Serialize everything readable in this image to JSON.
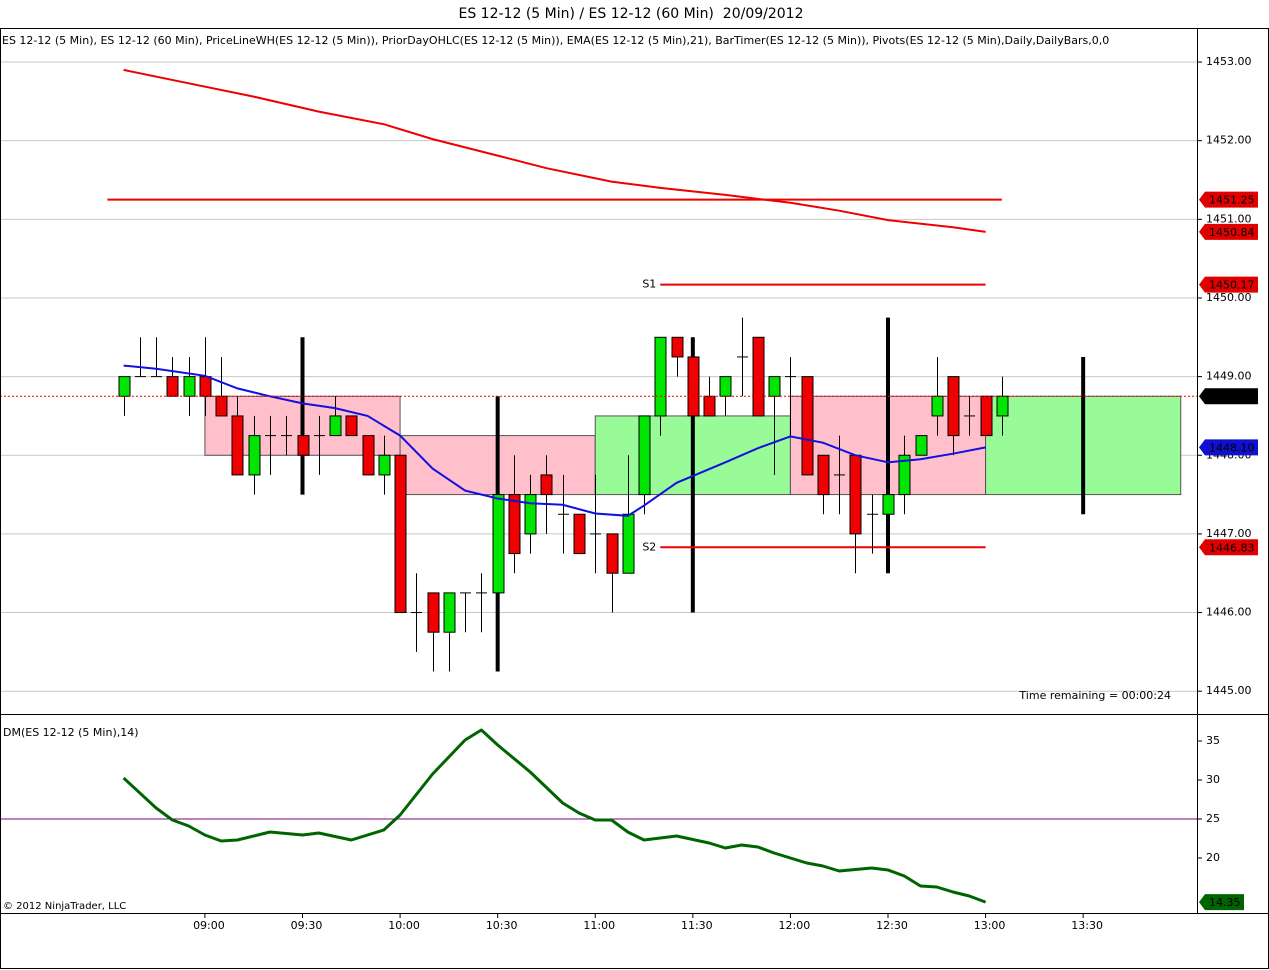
{
  "chart_data": [
    {
      "type": "candlestick",
      "title": "ES 12-12 (5 Min) / ES 12-12 (60 Min)  20/09/2012",
      "subtitle": "ES 12-12 (5 Min), ES 12-12 (60 Min), PriceLineWH(ES 12-12 (5 Min)), PriorDayOHLC(ES 12-12 (5 Min)), EMA(ES 12-12 (5 Min),21), BarTimer(ES 12-12 (5 Min)), Pivots(ES 12-12 (5 Min),Daily,DailyBars,0,0",
      "xlim": [
        "07:57",
        "14:05"
      ],
      "ylim": [
        1444.71,
        1453.42
      ],
      "yticks": [
        {
          "value": 1445,
          "label": "1445.00"
        },
        {
          "value": 1446,
          "label": "1446.00"
        },
        {
          "value": 1447,
          "label": "1447.00"
        },
        {
          "value": 1448,
          "label": "1448.00"
        },
        {
          "value": 1449,
          "label": "1449.00"
        },
        {
          "value": 1450,
          "label": "1450.00"
        },
        {
          "value": 1451,
          "label": "1451.00"
        },
        {
          "value": 1452,
          "label": "1452.00"
        },
        {
          "value": 1453,
          "label": "1453.00"
        }
      ],
      "grid": true,
      "candles": {
        "up_color": "#00e600",
        "down_color": "#f00000",
        "x": [
          "08:35",
          "08:40",
          "08:45",
          "08:50",
          "08:55",
          "09:00",
          "09:05",
          "09:10",
          "09:15",
          "09:20",
          "09:25",
          "09:30",
          "09:35",
          "09:40",
          "09:45",
          "09:50",
          "09:55",
          "10:00",
          "10:05",
          "10:10",
          "10:15",
          "10:20",
          "10:25",
          "10:30",
          "10:35",
          "10:40",
          "10:45",
          "10:50",
          "10:55",
          "11:00",
          "11:05",
          "11:10",
          "11:15",
          "11:20",
          "11:25",
          "11:30",
          "11:35",
          "11:40",
          "11:45",
          "11:50",
          "11:55",
          "12:00",
          "12:05",
          "12:10",
          "12:15",
          "12:20",
          "12:25",
          "12:30",
          "12:35",
          "12:40",
          "12:45",
          "12:50",
          "12:55",
          "13:00",
          "13:05"
        ],
        "open": [
          1448.75,
          1449,
          1449,
          1449,
          1448.75,
          1449,
          1448.75,
          1448.5,
          1447.75,
          1448.25,
          1448.25,
          1448.25,
          1448.25,
          1448.25,
          1448.5,
          1448.25,
          1447.75,
          1448,
          1446,
          1446.25,
          1445.75,
          1446.25,
          1446.25,
          1446.25,
          1447.5,
          1447,
          1447.75,
          1447.25,
          1447.25,
          1447,
          1447,
          1446.5,
          1447.5,
          1448.5,
          1449.5,
          1449.25,
          1448.75,
          1448.75,
          1449.25,
          1449.5,
          1448.75,
          1449,
          1449,
          1448,
          1447.75,
          1448,
          1447.25,
          1447.25,
          1447.5,
          1448,
          1448.5,
          1449,
          1448.5,
          1448.75,
          1448.5
        ],
        "high": [
          1449,
          1449.5,
          1449.5,
          1449.25,
          1449.25,
          1449.5,
          1449.25,
          1448.75,
          1448.5,
          1448.5,
          1448.5,
          1448.5,
          1448.5,
          1448.75,
          1448.5,
          1448.25,
          1448.25,
          1448,
          1446.5,
          1446.25,
          1446.25,
          1446.25,
          1446.5,
          1448,
          1448,
          1447.75,
          1448,
          1447.75,
          1447.25,
          1447.75,
          1447,
          1448,
          1448.5,
          1449.5,
          1449.5,
          1449.5,
          1449,
          1449,
          1449.75,
          1449.5,
          1449,
          1449.25,
          1449,
          1448,
          1448.25,
          1448,
          1447.5,
          1447.75,
          1448.25,
          1448.25,
          1449.25,
          1449,
          1448.75,
          1448.75,
          1449
        ],
        "low": [
          1448.5,
          1449,
          1449,
          1448.75,
          1448.5,
          1448.5,
          1448.5,
          1447.75,
          1447.5,
          1447.75,
          1448,
          1447.75,
          1447.75,
          1448.25,
          1448.25,
          1447.75,
          1447.5,
          1446,
          1445.5,
          1445.25,
          1445.25,
          1445.75,
          1445.75,
          1445.75,
          1446.5,
          1446.75,
          1447,
          1446.75,
          1446.75,
          1446.5,
          1446,
          1446.5,
          1447.25,
          1448.25,
          1449,
          1448.5,
          1448.5,
          1448.5,
          1448.75,
          1448.5,
          1447.75,
          1448.25,
          1447.75,
          1447.25,
          1447.25,
          1446.5,
          1446.75,
          1447,
          1447.25,
          1448,
          1448.25,
          1448,
          1448.25,
          1448.25,
          1448.25
        ],
        "close": [
          1449,
          1449,
          1449,
          1448.75,
          1449,
          1448.75,
          1448.5,
          1447.75,
          1448.25,
          1448.25,
          1448.25,
          1448,
          1448.25,
          1448.5,
          1448.25,
          1447.75,
          1448,
          1446,
          1446,
          1445.75,
          1446.25,
          1446.25,
          1446.25,
          1447.5,
          1446.75,
          1447.5,
          1447.5,
          1447.25,
          1446.75,
          1447,
          1446.5,
          1447.25,
          1448.5,
          1449.5,
          1449.25,
          1448.5,
          1448.5,
          1449,
          1449.25,
          1448.5,
          1449,
          1449,
          1447.75,
          1447.5,
          1447.75,
          1447,
          1447.25,
          1447.5,
          1448,
          1448.25,
          1448.75,
          1448.25,
          1448.5,
          1448.25,
          1448.75
        ]
      },
      "hourly": {
        "up_color": "#98fb98",
        "down_color": "#ffc0cb",
        "wick_color": "#000000",
        "x": [
          "09:30",
          "10:30",
          "11:30",
          "12:30",
          "13:30"
        ],
        "open": [
          1448.75,
          1448.25,
          1447.5,
          1448.75,
          1447.5
        ],
        "high": [
          1449.5,
          1448.75,
          1449.5,
          1449.75,
          1449.25
        ],
        "low": [
          1447.5,
          1445.25,
          1446,
          1446.5,
          1447.25
        ],
        "close": [
          1448,
          1447.5,
          1448.5,
          1447.5,
          1448.75
        ]
      },
      "series": [
        {
          "color": "#ee0000",
          "x": [
            "08:35",
            "08:55",
            "09:15",
            "09:35",
            "09:55",
            "10:10",
            "10:30",
            "10:45",
            "11:05",
            "11:20",
            "11:40",
            "12:00",
            "12:15",
            "12:30",
            "12:50",
            "13:00"
          ],
          "values": [
            1452.9,
            1452.73,
            1452.56,
            1452.37,
            1452.21,
            1452.02,
            1451.81,
            1451.65,
            1451.48,
            1451.4,
            1451.31,
            1451.21,
            1451.11,
            1450.99,
            1450.9,
            1450.84
          ]
        },
        {
          "color": "#1010e0",
          "x": [
            "08:35",
            "08:45",
            "09:00",
            "09:10",
            "09:20",
            "09:30",
            "09:40",
            "09:50",
            "10:00",
            "10:10",
            "10:20",
            "10:30",
            "10:40",
            "10:50",
            "11:00",
            "11:10",
            "11:15",
            "11:25",
            "11:40",
            "11:50",
            "12:00",
            "12:10",
            "12:20",
            "12:30",
            "12:40",
            "12:50",
            "13:00"
          ],
          "values": [
            1449.14,
            1449.1,
            1449.01,
            1448.85,
            1448.75,
            1448.66,
            1448.6,
            1448.5,
            1448.25,
            1447.83,
            1447.55,
            1447.45,
            1447.39,
            1447.37,
            1447.26,
            1447.23,
            1447.36,
            1447.65,
            1447.91,
            1448.09,
            1448.24,
            1448.16,
            1448,
            1447.91,
            1447.95,
            1448.02,
            1448.1
          ]
        }
      ],
      "levels": [
        {
          "value": 1451.25,
          "x": [
            "08:30",
            "13:05"
          ]
        },
        {
          "label": "S1",
          "value": 1450.17,
          "x": [
            "11:20",
            "13:00"
          ]
        },
        {
          "label": "S2",
          "value": 1446.83,
          "x": [
            "11:20",
            "13:00"
          ]
        }
      ],
      "level_color": "#ee0000",
      "price_line": {
        "value": 1448.75,
        "color": "#ee0000"
      },
      "tags": {
        "values": [
          1451.25,
          1450.84,
          1450.17,
          1448.75,
          1448.1,
          1446.83
        ],
        "value_labels": [
          "1451.25",
          "1450.84",
          "1450.17",
          "1448.75",
          "1448.10",
          "1446.83"
        ],
        "colors": [
          "#e00000",
          "#e00000",
          "#e00000",
          "#000000",
          "#1010d0",
          "#e00000"
        ]
      },
      "annotations": [
        "Time remaining = 00:00:24",
        "© 2012 NinjaTrader, LLC"
      ]
    },
    {
      "type": "line",
      "title": "DM(ES 12-12 (5 Min),14)",
      "color": "#006400",
      "xlim": [
        "07:57",
        "14:05"
      ],
      "xticks": [
        "09:00",
        "09:30",
        "10:00",
        "10:30",
        "11:00",
        "11:30",
        "12:00",
        "12:30",
        "13:00",
        "13:30"
      ],
      "ylim": [
        12.95,
        38.46
      ],
      "yticks": [
        20,
        25,
        30,
        35
      ],
      "grid": false,
      "reference": {
        "value": 25,
        "color": "#800080"
      },
      "x": [
        "08:35",
        "08:45",
        "08:50",
        "08:55",
        "09:00",
        "09:05",
        "09:10",
        "09:20",
        "09:30",
        "09:35",
        "09:45",
        "09:55",
        "10:00",
        "10:10",
        "10:20",
        "10:25",
        "10:30",
        "10:40",
        "10:50",
        "10:55",
        "11:00",
        "11:05",
        "11:10",
        "11:15",
        "11:25",
        "11:35",
        "11:40",
        "11:45",
        "11:50",
        "11:55",
        "12:00",
        "12:05",
        "12:10",
        "12:15",
        "12:25",
        "12:30",
        "12:35",
        "12:40",
        "12:45",
        "12:50",
        "12:55",
        "13:00"
      ],
      "values": [
        30.26,
        26.41,
        24.87,
        24.1,
        22.95,
        22.18,
        22.31,
        23.33,
        22.95,
        23.21,
        22.31,
        23.59,
        25.51,
        30.77,
        35.13,
        36.41,
        34.49,
        31.03,
        27.05,
        25.77,
        24.87,
        24.87,
        23.33,
        22.31,
        22.82,
        21.92,
        21.28,
        21.67,
        21.41,
        20.64,
        20,
        19.36,
        18.97,
        18.33,
        18.72,
        18.46,
        17.69,
        16.41,
        16.28,
        15.64,
        15.13,
        14.35
      ]
    }
  ]
}
